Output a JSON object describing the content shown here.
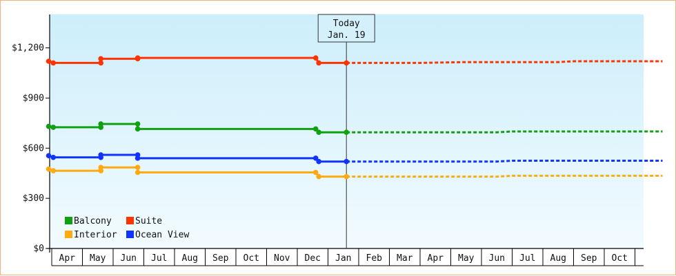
{
  "chart_data": {
    "type": "line",
    "title": "",
    "xlabel": "",
    "ylabel": "",
    "y_ticks": [
      "$0",
      "$300",
      "$600",
      "$900",
      "$1,200"
    ],
    "ylim": [
      0,
      1400
    ],
    "x_tick_labels": [
      "Apr",
      "May",
      "Jun",
      "Jul",
      "Aug",
      "Sep",
      "Oct",
      "Nov",
      "Dec",
      "Jan",
      "Feb",
      "Mar",
      "Apr",
      "May",
      "Jun",
      "Jul",
      "Aug",
      "Sep",
      "Oct"
    ],
    "today_marker": {
      "line1": "Today",
      "line2": "Jan. 19",
      "x": 9.6
    },
    "legend_placement": "bottom-left",
    "grid": false,
    "colors": {
      "Balcony": "#11a011",
      "Suite": "#ff3300",
      "Interior": "#ffaa11",
      "Ocean View": "#1133ff",
      "background_top": "#cdeefb",
      "background_bottom": "#f2fbff",
      "frame": "#f0b37a"
    },
    "legend": [
      "Balcony",
      "Suite",
      "Interior",
      "Ocean View"
    ],
    "series": [
      {
        "name": "Suite",
        "actual": [
          [
            -0.1,
            1120
          ],
          [
            0.05,
            1110
          ],
          [
            1.6,
            1110
          ],
          [
            1.6,
            1135
          ],
          [
            2.8,
            1135
          ],
          [
            2.8,
            1140
          ],
          [
            8.6,
            1140
          ],
          [
            8.7,
            1110
          ],
          [
            9.6,
            1110
          ]
        ],
        "forecast": [
          [
            9.6,
            1110
          ],
          [
            12.0,
            1110
          ],
          [
            13.5,
            1115
          ],
          [
            16.5,
            1115
          ],
          [
            17.0,
            1120
          ],
          [
            19.9,
            1120
          ]
        ]
      },
      {
        "name": "Balcony",
        "actual": [
          [
            -0.1,
            730
          ],
          [
            0.05,
            725
          ],
          [
            1.6,
            725
          ],
          [
            1.6,
            745
          ],
          [
            2.8,
            745
          ],
          [
            2.8,
            715
          ],
          [
            8.6,
            715
          ],
          [
            8.7,
            695
          ],
          [
            9.6,
            695
          ]
        ],
        "forecast": [
          [
            9.6,
            695
          ],
          [
            14.5,
            695
          ],
          [
            15.0,
            700
          ],
          [
            19.9,
            700
          ]
        ]
      },
      {
        "name": "Ocean View",
        "actual": [
          [
            -0.1,
            555
          ],
          [
            0.05,
            545
          ],
          [
            1.6,
            545
          ],
          [
            1.6,
            560
          ],
          [
            2.8,
            560
          ],
          [
            2.8,
            540
          ],
          [
            8.6,
            540
          ],
          [
            8.7,
            520
          ],
          [
            9.6,
            520
          ]
        ],
        "forecast": [
          [
            9.6,
            520
          ],
          [
            14.5,
            520
          ],
          [
            15.0,
            525
          ],
          [
            19.9,
            525
          ]
        ]
      },
      {
        "name": "Interior",
        "actual": [
          [
            -0.1,
            475
          ],
          [
            0.05,
            465
          ],
          [
            1.6,
            465
          ],
          [
            1.6,
            485
          ],
          [
            2.8,
            485
          ],
          [
            2.8,
            455
          ],
          [
            8.6,
            455
          ],
          [
            8.7,
            430
          ],
          [
            9.6,
            430
          ]
        ],
        "forecast": [
          [
            9.6,
            430
          ],
          [
            14.5,
            430
          ],
          [
            15.0,
            435
          ],
          [
            19.9,
            435
          ]
        ]
      }
    ]
  }
}
